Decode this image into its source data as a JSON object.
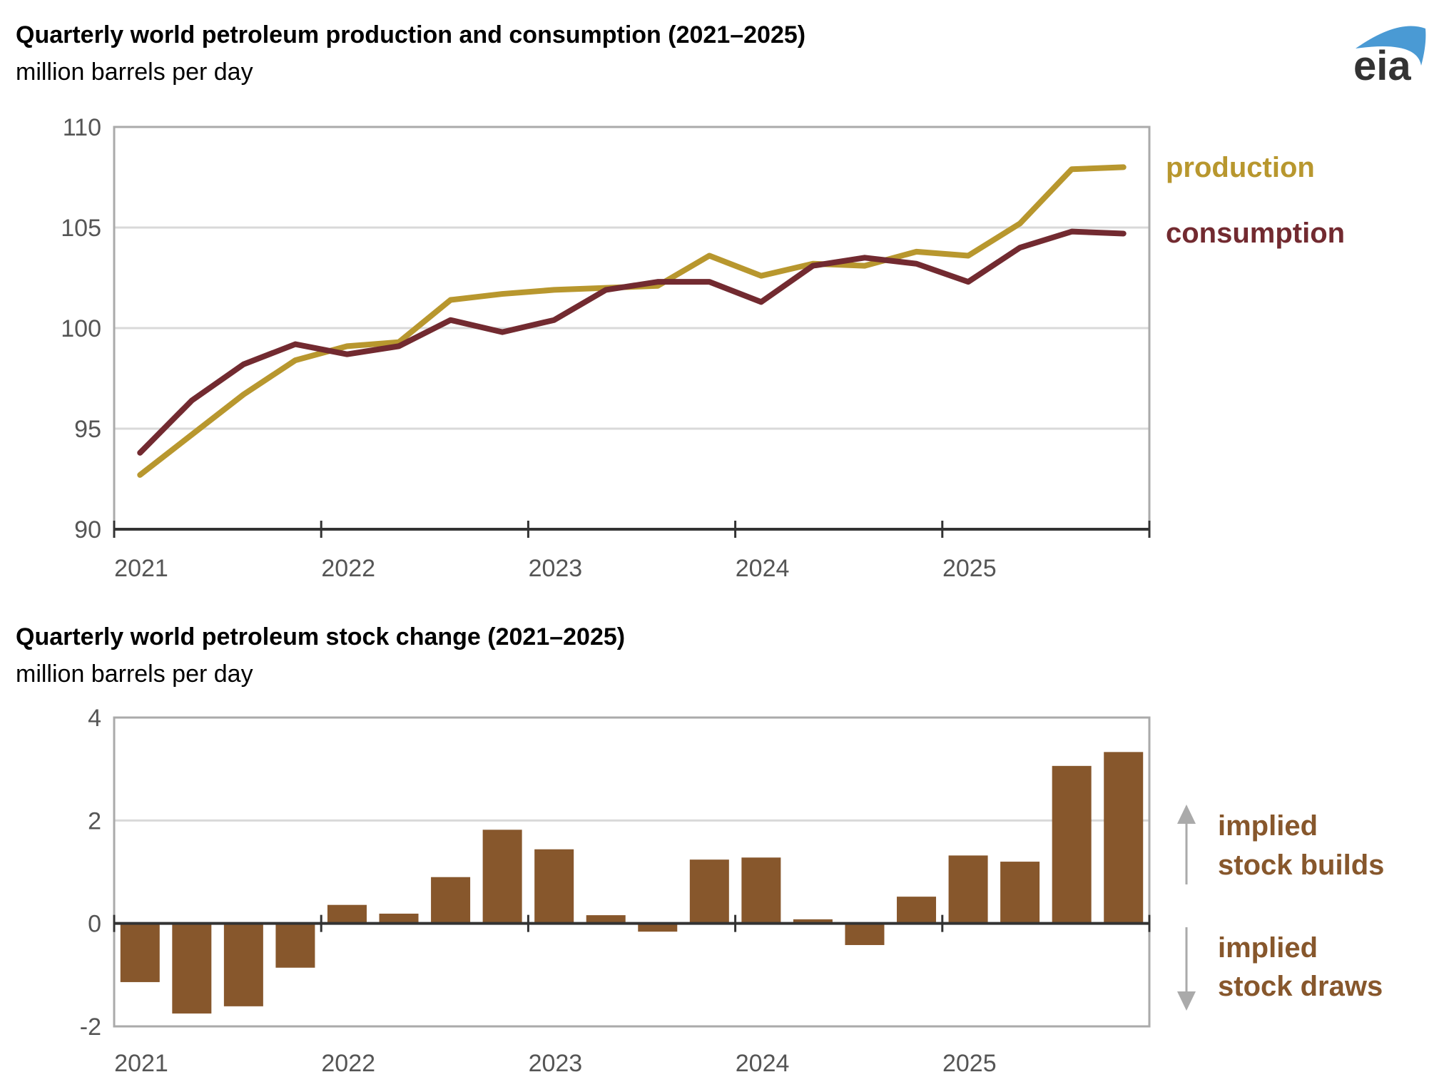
{
  "logo": {
    "text": "eia",
    "colors": {
      "arc": "#4a9ad4",
      "letters": "#333333"
    }
  },
  "chart_data": [
    {
      "type": "line",
      "title": "Quarterly world petroleum production and consumption (2021–2025)",
      "subtitle": "million barrels per day",
      "x_ticks": [
        "2021",
        "2022",
        "2023",
        "2024",
        "2025"
      ],
      "x": [
        "2021Q1",
        "2021Q2",
        "2021Q3",
        "2021Q4",
        "2022Q1",
        "2022Q2",
        "2022Q3",
        "2022Q4",
        "2023Q1",
        "2023Q2",
        "2023Q3",
        "2023Q4",
        "2024Q1",
        "2024Q2",
        "2024Q3",
        "2024Q4",
        "2025Q1",
        "2025Q2",
        "2025Q3",
        "2025Q4"
      ],
      "ylim": [
        90,
        110
      ],
      "y_ticks": [
        90,
        95,
        100,
        105,
        110
      ],
      "grid": true,
      "legend_placement": "right",
      "series": [
        {
          "name": "production",
          "color": "#b8972e",
          "values": [
            92.7,
            94.7,
            96.7,
            98.4,
            99.1,
            99.3,
            101.4,
            101.7,
            101.9,
            102.0,
            102.1,
            103.6,
            102.6,
            103.2,
            103.1,
            103.8,
            103.6,
            105.2,
            107.9,
            108.0
          ]
        },
        {
          "name": "consumption",
          "color": "#722a30",
          "values": [
            93.8,
            96.4,
            98.2,
            99.2,
            98.7,
            99.1,
            100.4,
            99.8,
            100.4,
            101.9,
            102.3,
            102.3,
            101.3,
            103.1,
            103.5,
            103.2,
            102.3,
            104.0,
            104.8,
            104.7
          ]
        }
      ]
    },
    {
      "type": "bar",
      "title": "Quarterly world petroleum stock change (2021–2025)",
      "subtitle": "million barrels per day",
      "x_ticks": [
        "2021",
        "2022",
        "2023",
        "2024",
        "2025"
      ],
      "x": [
        "2021Q1",
        "2021Q2",
        "2021Q3",
        "2021Q4",
        "2022Q1",
        "2022Q2",
        "2022Q3",
        "2022Q4",
        "2023Q1",
        "2023Q2",
        "2023Q3",
        "2023Q4",
        "2024Q1",
        "2024Q2",
        "2024Q3",
        "2024Q4",
        "2025Q1",
        "2025Q2",
        "2025Q3",
        "2025Q4"
      ],
      "ylim": [
        -2,
        4
      ],
      "y_ticks": [
        -2,
        0,
        2,
        4
      ],
      "grid": true,
      "color": "#87572c",
      "values": [
        -1.14,
        -1.75,
        -1.61,
        -0.86,
        0.36,
        0.19,
        0.9,
        1.82,
        1.44,
        0.16,
        -0.16,
        1.24,
        1.28,
        0.08,
        -0.42,
        0.52,
        1.32,
        1.2,
        3.06,
        3.33
      ],
      "annotations": {
        "builds": [
          "implied",
          "stock builds"
        ],
        "draws": [
          "implied",
          "stock draws"
        ]
      }
    }
  ]
}
